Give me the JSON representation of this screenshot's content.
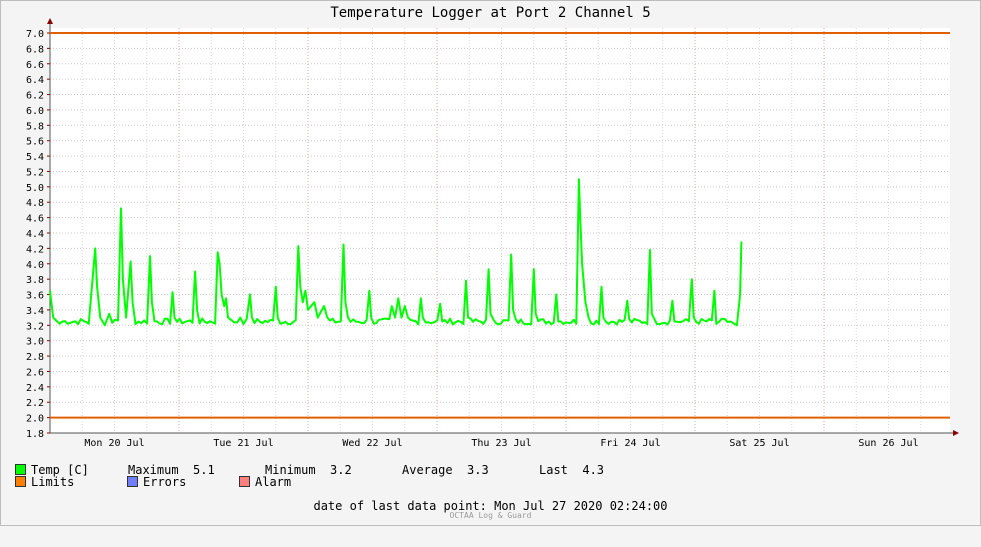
{
  "chart_data": {
    "type": "line",
    "title": "Temperature Logger at Port 2 Channel 5",
    "ylim": [
      1.8,
      7.0
    ],
    "yticks": [
      "7.0",
      "6.8",
      "6.6",
      "6.4",
      "6.2",
      "6.0",
      "5.8",
      "5.6",
      "5.4",
      "5.2",
      "5.0",
      "4.8",
      "4.6",
      "4.4",
      "4.2",
      "4.0",
      "3.8",
      "3.6",
      "3.4",
      "3.2",
      "3.0",
      "2.8",
      "2.6",
      "2.4",
      "2.2",
      "2.0",
      "1.8"
    ],
    "x_categories": [
      "Mon 20 Jul",
      "Tue 21 Jul",
      "Wed 22 Jul",
      "Thu 23 Jul",
      "Fri 24 Jul",
      "Sat 25 Jul",
      "Sun 26 Jul"
    ],
    "series": [
      {
        "name": "Temp [C]",
        "color": "#00ff00",
        "baseline": 3.25,
        "points": [
          [
            0.0,
            3.65
          ],
          [
            0.05,
            3.3
          ],
          [
            0.15,
            3.22
          ],
          [
            0.6,
            3.22
          ],
          [
            0.7,
            4.2
          ],
          [
            0.73,
            3.7
          ],
          [
            0.78,
            3.3
          ],
          [
            0.85,
            3.2
          ],
          [
            0.92,
            3.35
          ],
          [
            1.1,
            4.72
          ],
          [
            1.13,
            3.8
          ],
          [
            1.18,
            3.3
          ],
          [
            1.25,
            4.03
          ],
          [
            1.28,
            3.5
          ],
          [
            1.55,
            4.1
          ],
          [
            1.58,
            3.5
          ],
          [
            1.9,
            3.63
          ],
          [
            1.93,
            3.3
          ],
          [
            2.25,
            3.9
          ],
          [
            2.28,
            3.4
          ],
          [
            2.6,
            4.15
          ],
          [
            2.63,
            4.0
          ],
          [
            2.66,
            3.6
          ],
          [
            2.7,
            3.45
          ],
          [
            2.73,
            3.55
          ],
          [
            2.76,
            3.3
          ],
          [
            2.95,
            3.3
          ],
          [
            3.1,
            3.6
          ],
          [
            3.13,
            3.3
          ],
          [
            3.5,
            3.7
          ],
          [
            3.53,
            3.3
          ],
          [
            3.85,
            4.23
          ],
          [
            3.88,
            3.7
          ],
          [
            3.92,
            3.5
          ],
          [
            3.96,
            3.65
          ],
          [
            4.0,
            3.4
          ],
          [
            4.1,
            3.5
          ],
          [
            4.15,
            3.3
          ],
          [
            4.25,
            3.45
          ],
          [
            4.3,
            3.3
          ],
          [
            4.55,
            4.25
          ],
          [
            4.58,
            3.5
          ],
          [
            4.62,
            3.3
          ],
          [
            4.95,
            3.65
          ],
          [
            4.98,
            3.3
          ],
          [
            5.3,
            3.45
          ],
          [
            5.35,
            3.3
          ],
          [
            5.4,
            3.55
          ],
          [
            5.45,
            3.3
          ],
          [
            5.5,
            3.45
          ],
          [
            5.55,
            3.3
          ],
          [
            5.75,
            3.55
          ],
          [
            5.78,
            3.3
          ],
          [
            6.05,
            3.48
          ],
          [
            6.08,
            3.25
          ],
          [
            6.45,
            3.78
          ],
          [
            6.48,
            3.3
          ],
          [
            6.8,
            3.93
          ],
          [
            6.83,
            3.35
          ],
          [
            7.15,
            4.12
          ],
          [
            7.18,
            3.4
          ],
          [
            7.5,
            3.93
          ],
          [
            7.53,
            3.35
          ],
          [
            7.85,
            3.6
          ],
          [
            7.88,
            3.25
          ],
          [
            8.2,
            5.1
          ],
          [
            8.22,
            4.6
          ],
          [
            8.25,
            4.0
          ],
          [
            8.3,
            3.5
          ],
          [
            8.35,
            3.3
          ],
          [
            8.55,
            3.7
          ],
          [
            8.58,
            3.3
          ],
          [
            8.95,
            3.52
          ],
          [
            8.98,
            3.28
          ],
          [
            9.3,
            4.18
          ],
          [
            9.33,
            3.35
          ],
          [
            9.65,
            3.52
          ],
          [
            9.68,
            3.25
          ],
          [
            9.95,
            3.8
          ],
          [
            9.98,
            3.3
          ],
          [
            10.3,
            3.65
          ],
          [
            10.33,
            3.22
          ],
          [
            10.55,
            3.25
          ],
          [
            10.65,
            3.2
          ],
          [
            10.7,
            3.6
          ],
          [
            10.72,
            4.29
          ]
        ]
      }
    ],
    "limits": {
      "name": "Limits",
      "color": "#e06000",
      "values": [
        7.0,
        2.0
      ]
    },
    "legend": {
      "temp": "Temp [C]",
      "maximum_label": "Maximum",
      "maximum": "5.1",
      "minimum_label": "Minimum",
      "minimum": "3.2",
      "average_label": "Average",
      "average": "3.3",
      "last_label": "Last",
      "last": "4.3",
      "limits": "Limits",
      "errors": "Errors",
      "alarm": "Alarm"
    },
    "colors": {
      "temp": "#00ff00",
      "limits": "#ff8000",
      "errors": "#6f7fff",
      "alarm": "#ff7f7f"
    }
  },
  "footer": {
    "last_point_label": "date of last data point:",
    "last_point_value": "Mon Jul 27 2020 02:24:00",
    "credit": "OCTAA Log & Guard"
  }
}
